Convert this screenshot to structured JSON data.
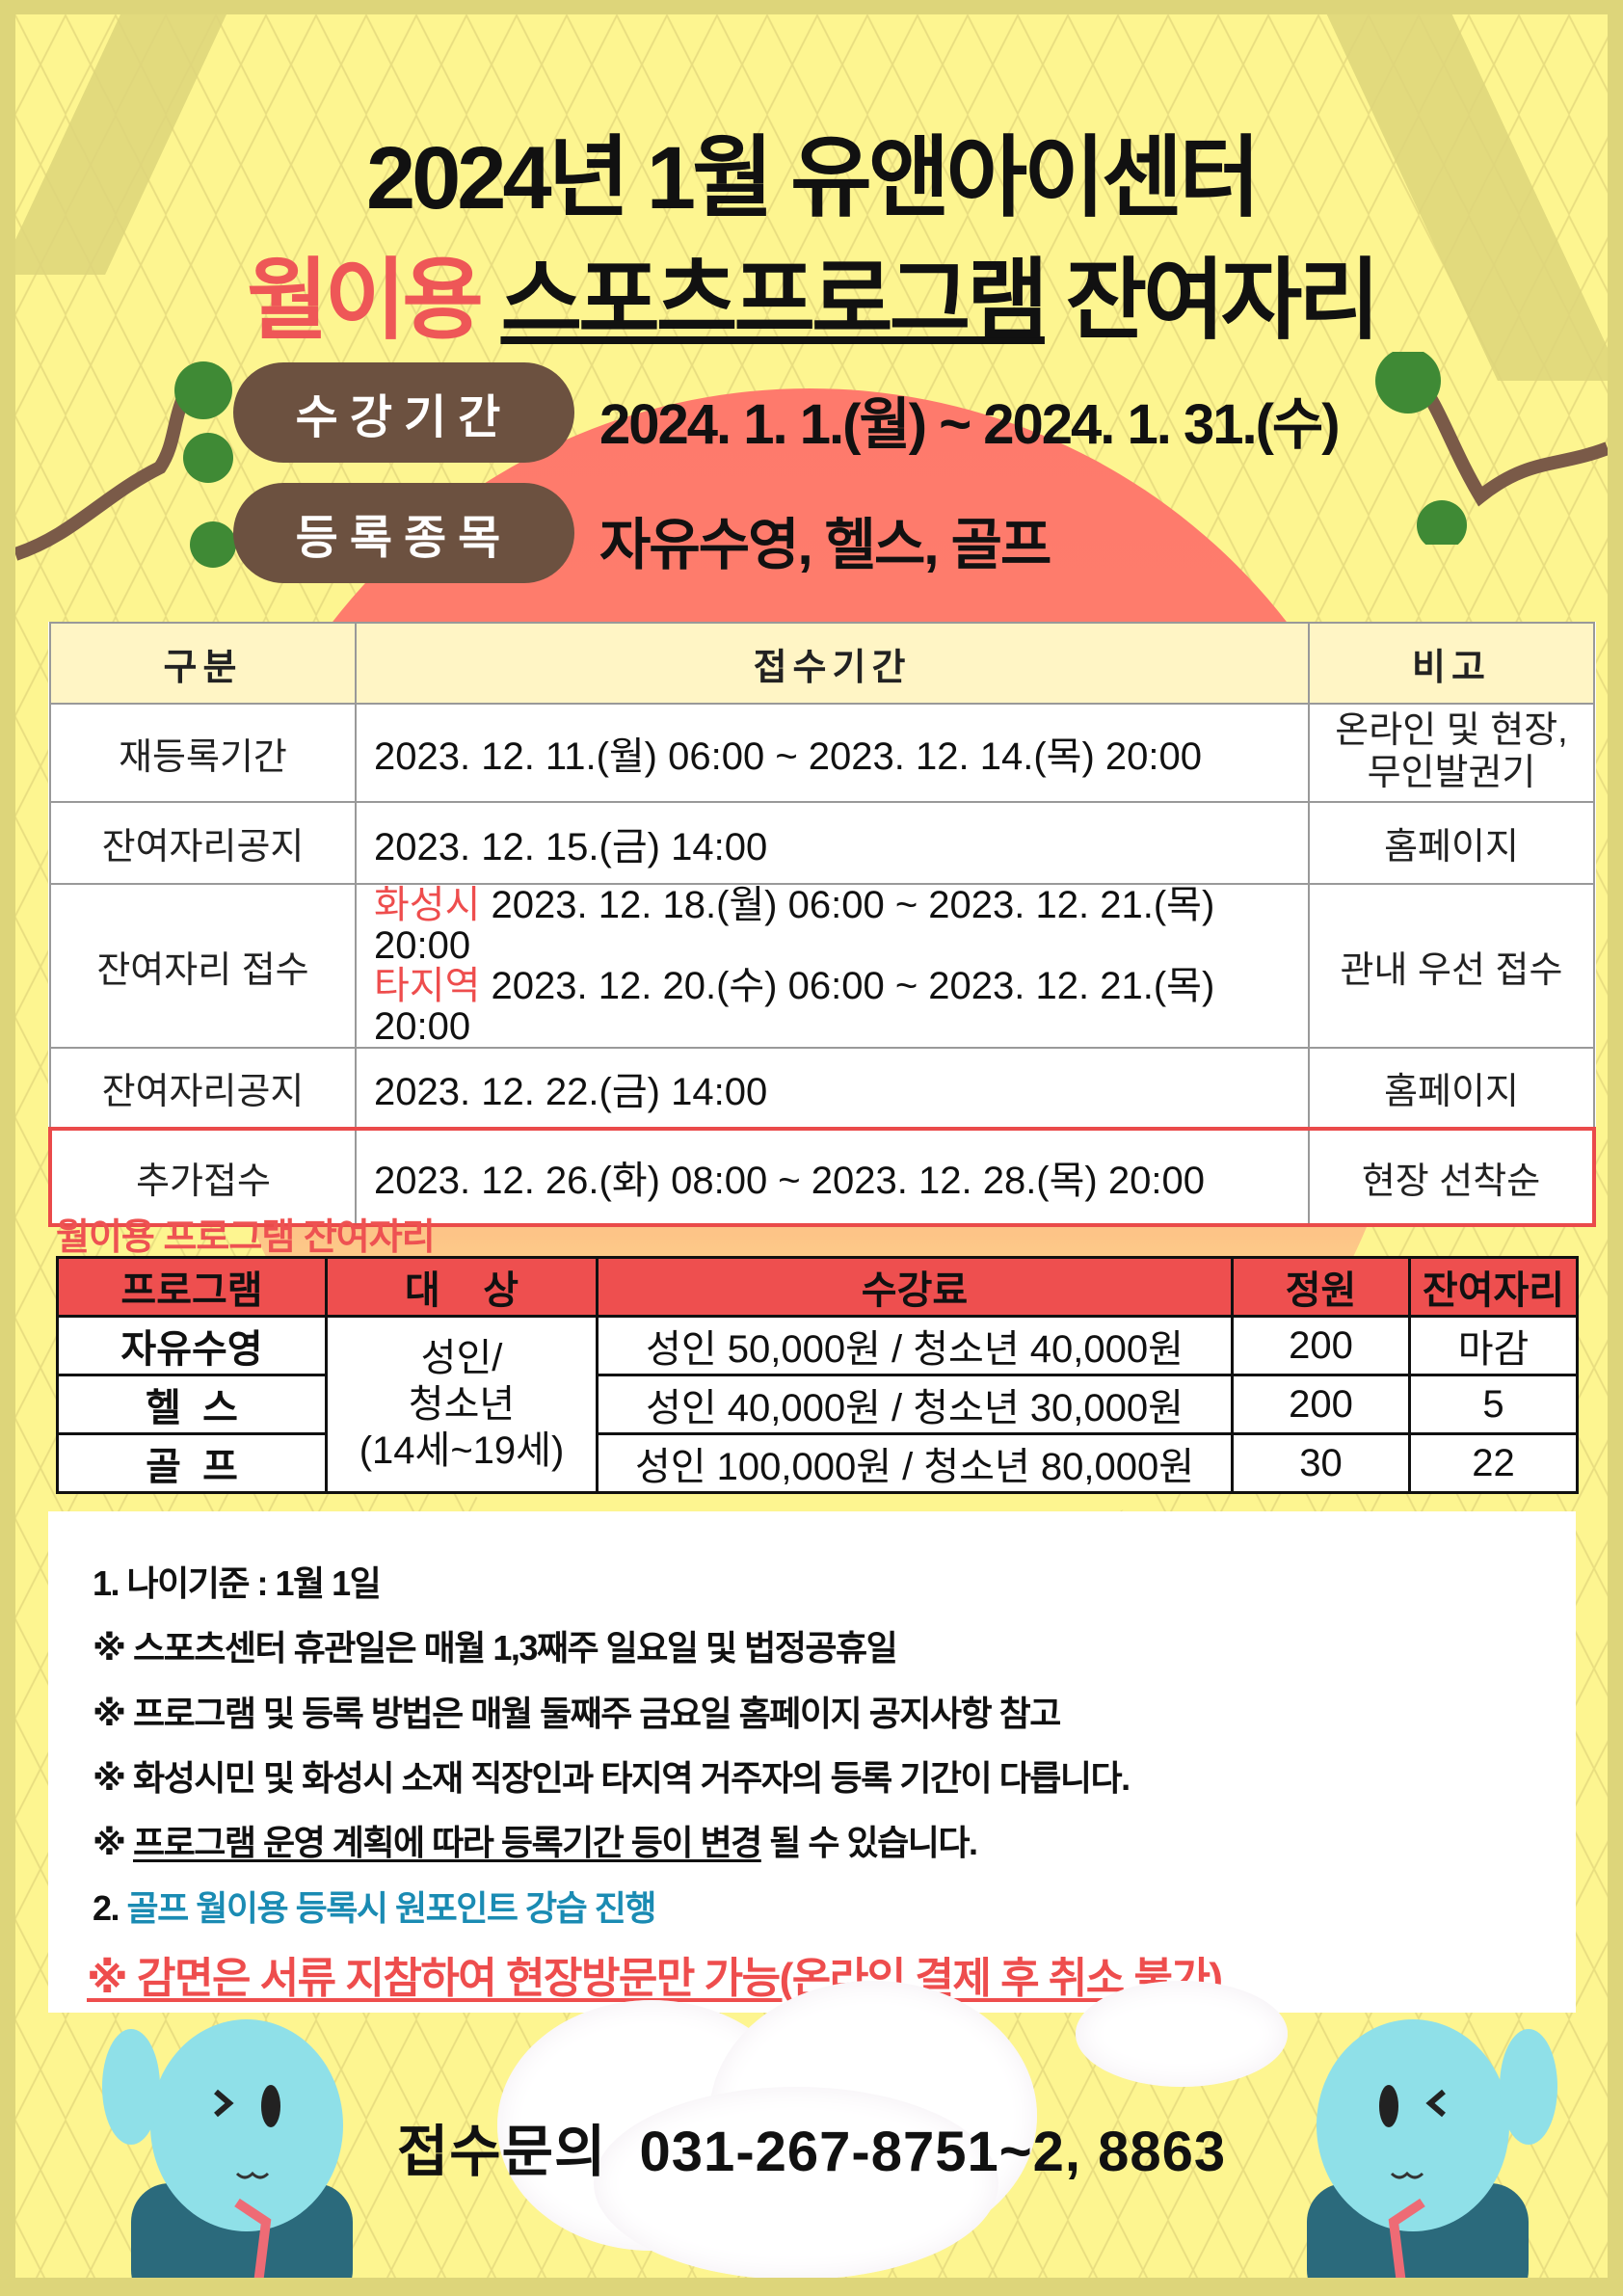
{
  "header": {
    "title_line1": "2024년 1월 유앤아이센터",
    "title_line2_highlight": "월이용",
    "title_line2_underlined": "스포츠프로그램",
    "title_line2_rest": "잔여자리"
  },
  "info": [
    {
      "label": "수강기간",
      "value": "2024. 1. 1.(월) ~ 2024. 1. 31.(수)"
    },
    {
      "label": "등록종목",
      "value": "자유수영, 헬스, 골프"
    }
  ],
  "schedule_table": {
    "headers": [
      "구분",
      "접수기간",
      "비고"
    ],
    "rows": [
      {
        "category": "재등록기간",
        "period": "2023. 12. 11.(월) 06:00 ~ 2023. 12. 14.(목) 20:00",
        "note_line1": "온라인 및 현장,",
        "note_line2": "무인발권기"
      },
      {
        "category": "잔여자리공지",
        "period": "2023. 12. 15.(금) 14:00",
        "note": "홈페이지"
      },
      {
        "category": "잔여자리 접수",
        "period_lines": [
          {
            "tag": "화성시",
            "text": "2023. 12. 18.(월) 06:00 ~ 2023. 12. 21.(목) 20:00"
          },
          {
            "tag": "타지역",
            "text": "2023. 12. 20.(수) 06:00 ~ 2023. 12. 21.(목) 20:00"
          }
        ],
        "note": "관내 우선 접수"
      },
      {
        "category": "잔여자리공지",
        "period": "2023. 12. 22.(금) 14:00",
        "note": "홈페이지"
      },
      {
        "category": "추가접수",
        "period": "2023. 12. 26.(화) 08:00 ~ 2023. 12. 28.(목) 20:00",
        "note": "현장 선착순",
        "highlighted": true
      }
    ],
    "highlight_color": "#ea4a4a"
  },
  "program_section_title": "월이용 프로그램 잔여자리",
  "program_table": {
    "headers": [
      "프로그램",
      "대    상",
      "수강료",
      "정원",
      "잔여자리"
    ],
    "target": {
      "line1": "성인/",
      "line2": "청소년",
      "line3": "(14세~19세)"
    },
    "rows": [
      {
        "program": "자유수영",
        "fee": "성인 50,000원 / 청소년 40,000원",
        "capacity": "200",
        "remaining": "마감"
      },
      {
        "program": "헬  스",
        "fee": "성인 40,000원 / 청소년 30,000원",
        "capacity": "200",
        "remaining": "5"
      },
      {
        "program": "골  프",
        "fee": "성인 100,000원 / 청소년 80,000원",
        "capacity": "30",
        "remaining": "22"
      }
    ],
    "header_color": "#ee4f4f"
  },
  "notes": {
    "n1": "1. 나이기준 : 1월 1일",
    "n2": "※ 스포츠센터 휴관일은 매월 1,3째주 일요일 및 법정공휴일",
    "n3": "※ 프로그램 및 등록 방법은 매월 둘째주 금요일 홈페이지 공지사항 참고",
    "n4": "※ 화성시민 및 화성시 소재 직장인과 타지역 거주자의 등록 기간이 다릅니다.",
    "n5_prefix": "※ ",
    "n5_underlined": "프로그램 운영 계획에 따라 등록기간 등이 변경",
    "n5_rest": " 될 수 있습니다.",
    "n6_prefix": "2. ",
    "n6_text": "골프 월이용 등록시 원포인트 강습 진행",
    "n7": "※ 감면은 서류 지참하여 현장방문만 가능(온라인 결제 후 취소 불가)"
  },
  "contact": {
    "label": "접수문의",
    "phone": "031-267-8751~2, 8863"
  },
  "colors": {
    "background": "#fdf590",
    "border": "#ddd57a",
    "accent_red": "#ee5757",
    "pill": "#6c5140",
    "teal": "#1a8bb3"
  }
}
